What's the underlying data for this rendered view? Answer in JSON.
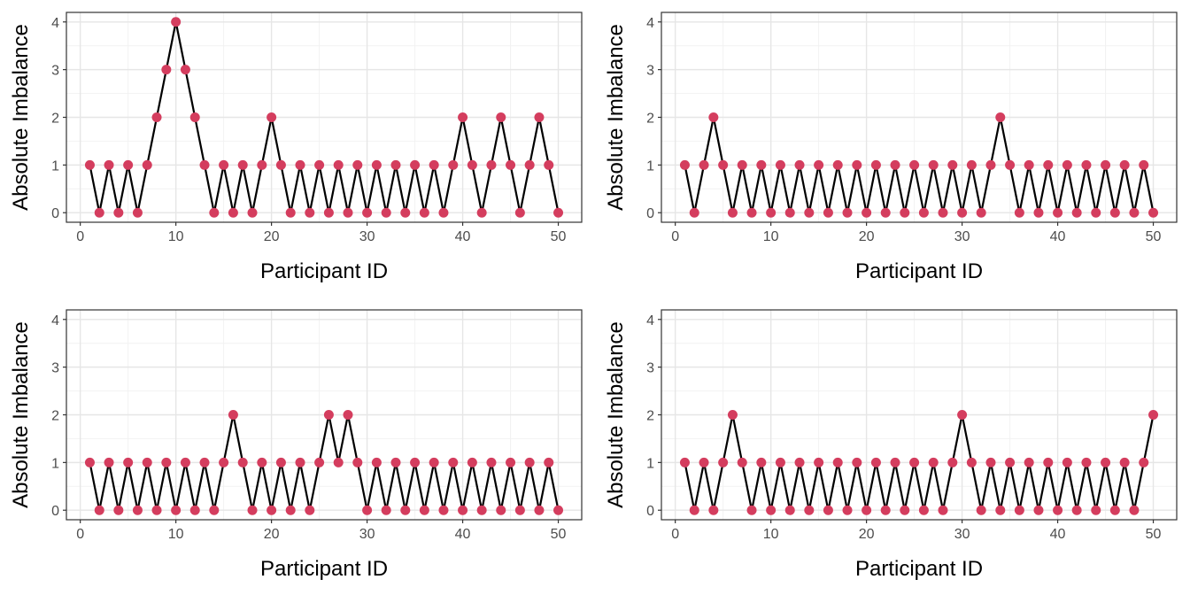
{
  "chart_data": [
    {
      "type": "line",
      "xlabel": "Participant ID",
      "ylabel": "Absolute Imbalance",
      "xlim": [
        1,
        50
      ],
      "ylim": [
        0,
        4
      ],
      "xticks": [
        0,
        10,
        20,
        30,
        40,
        50
      ],
      "yticks": [
        0,
        1,
        2,
        3,
        4
      ],
      "grid": true,
      "x": [
        1,
        2,
        3,
        4,
        5,
        6,
        7,
        8,
        9,
        10,
        11,
        12,
        13,
        14,
        15,
        16,
        17,
        18,
        19,
        20,
        21,
        22,
        23,
        24,
        25,
        26,
        27,
        28,
        29,
        30,
        31,
        32,
        33,
        34,
        35,
        36,
        37,
        38,
        39,
        40,
        41,
        42,
        43,
        44,
        45,
        46,
        47,
        48,
        49,
        50
      ],
      "values": [
        1,
        0,
        1,
        0,
        1,
        0,
        1,
        2,
        3,
        4,
        3,
        2,
        1,
        0,
        1,
        0,
        1,
        0,
        1,
        2,
        1,
        0,
        1,
        0,
        1,
        0,
        1,
        0,
        1,
        0,
        1,
        0,
        1,
        0,
        1,
        0,
        1,
        0,
        1,
        2,
        1,
        0,
        1,
        2,
        1,
        0,
        1,
        2,
        1,
        0
      ]
    },
    {
      "type": "line",
      "xlabel": "Participant ID",
      "ylabel": "Absolute Imbalance",
      "xlim": [
        1,
        50
      ],
      "ylim": [
        0,
        4
      ],
      "xticks": [
        0,
        10,
        20,
        30,
        40,
        50
      ],
      "yticks": [
        0,
        1,
        2,
        3,
        4
      ],
      "grid": true,
      "x": [
        1,
        2,
        3,
        4,
        5,
        6,
        7,
        8,
        9,
        10,
        11,
        12,
        13,
        14,
        15,
        16,
        17,
        18,
        19,
        20,
        21,
        22,
        23,
        24,
        25,
        26,
        27,
        28,
        29,
        30,
        31,
        32,
        33,
        34,
        35,
        36,
        37,
        38,
        39,
        40,
        41,
        42,
        43,
        44,
        45,
        46,
        47,
        48,
        49,
        50
      ],
      "values": [
        1,
        0,
        1,
        2,
        1,
        0,
        1,
        0,
        1,
        0,
        1,
        0,
        1,
        0,
        1,
        0,
        1,
        0,
        1,
        0,
        1,
        0,
        1,
        0,
        1,
        0,
        1,
        0,
        1,
        0,
        1,
        0,
        1,
        2,
        1,
        0,
        1,
        0,
        1,
        0,
        1,
        0,
        1,
        0,
        1,
        0,
        1,
        0,
        1,
        0
      ]
    },
    {
      "type": "line",
      "xlabel": "Participant ID",
      "ylabel": "Absolute Imbalance",
      "xlim": [
        1,
        50
      ],
      "ylim": [
        0,
        4
      ],
      "xticks": [
        0,
        10,
        20,
        30,
        40,
        50
      ],
      "yticks": [
        0,
        1,
        2,
        3,
        4
      ],
      "grid": true,
      "x": [
        1,
        2,
        3,
        4,
        5,
        6,
        7,
        8,
        9,
        10,
        11,
        12,
        13,
        14,
        15,
        16,
        17,
        18,
        19,
        20,
        21,
        22,
        23,
        24,
        25,
        26,
        27,
        28,
        29,
        30,
        31,
        32,
        33,
        34,
        35,
        36,
        37,
        38,
        39,
        40,
        41,
        42,
        43,
        44,
        45,
        46,
        47,
        48,
        49,
        50
      ],
      "values": [
        1,
        0,
        1,
        0,
        1,
        0,
        1,
        0,
        1,
        0,
        1,
        0,
        1,
        0,
        1,
        2,
        1,
        0,
        1,
        0,
        1,
        0,
        1,
        0,
        1,
        2,
        1,
        2,
        1,
        0,
        1,
        0,
        1,
        0,
        1,
        0,
        1,
        0,
        1,
        0,
        1,
        0,
        1,
        0,
        1,
        0,
        1,
        0,
        1,
        0
      ]
    },
    {
      "type": "line",
      "xlabel": "Participant ID",
      "ylabel": "Absolute Imbalance",
      "xlim": [
        1,
        50
      ],
      "ylim": [
        0,
        4
      ],
      "xticks": [
        0,
        10,
        20,
        30,
        40,
        50
      ],
      "yticks": [
        0,
        1,
        2,
        3,
        4
      ],
      "grid": true,
      "x": [
        1,
        2,
        3,
        4,
        5,
        6,
        7,
        8,
        9,
        10,
        11,
        12,
        13,
        14,
        15,
        16,
        17,
        18,
        19,
        20,
        21,
        22,
        23,
        24,
        25,
        26,
        27,
        28,
        29,
        30,
        31,
        32,
        33,
        34,
        35,
        36,
        37,
        38,
        39,
        40,
        41,
        42,
        43,
        44,
        45,
        46,
        47,
        48,
        49,
        50
      ],
      "values": [
        1,
        0,
        1,
        0,
        1,
        2,
        1,
        0,
        1,
        0,
        1,
        0,
        1,
        0,
        1,
        0,
        1,
        0,
        1,
        0,
        1,
        0,
        1,
        0,
        1,
        0,
        1,
        0,
        1,
        2,
        1,
        0,
        1,
        0,
        1,
        0,
        1,
        0,
        1,
        0,
        1,
        0,
        1,
        0,
        1,
        0,
        1,
        0,
        1,
        2
      ]
    }
  ],
  "colors": {
    "line": "#000000",
    "point": "#d43d5e",
    "grid_major": "#e6e6e6",
    "grid_minor": "#f2f2f2",
    "panel_border": "#333333",
    "tick_text": "#4d4d4d"
  }
}
